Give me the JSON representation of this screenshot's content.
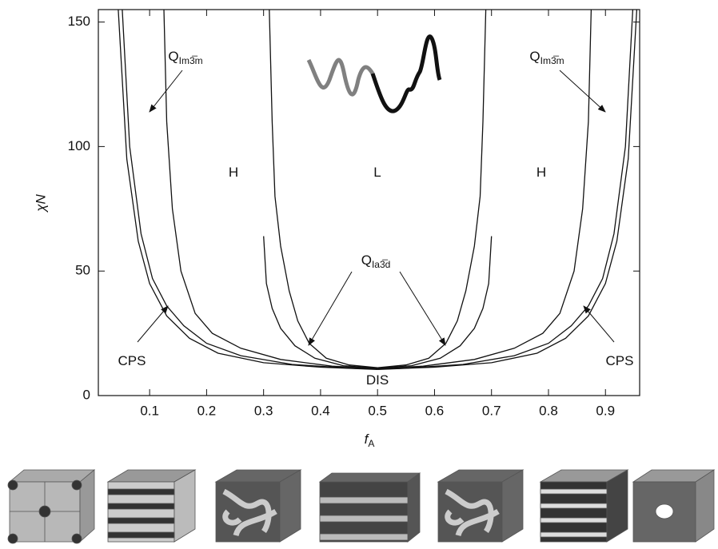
{
  "chart_data": {
    "type": "line",
    "x_label": {
      "main": "f",
      "sub": "A"
    },
    "y_label": "χN",
    "xlim": [
      0.01,
      0.96
    ],
    "ylim": [
      0,
      155
    ],
    "xticks": [
      0.1,
      0.2,
      0.3,
      0.4,
      0.5,
      0.6,
      0.7,
      0.8,
      0.9
    ],
    "yticks": [
      0,
      50,
      100,
      150
    ],
    "color": "#111111",
    "series": [
      {
        "x": [
          0.045,
          0.06,
          0.08,
          0.1,
          0.13,
          0.17,
          0.22,
          0.3,
          0.4,
          0.5
        ],
        "values": [
          155,
          95,
          62,
          45,
          32,
          23,
          17,
          13.2,
          11.4,
          10.5
        ]
      },
      {
        "x": [
          0.052,
          0.065,
          0.085,
          0.105,
          0.13,
          0.16,
          0.2,
          0.26,
          0.35,
          0.45,
          0.5
        ],
        "values": [
          155,
          100,
          65,
          47,
          36,
          28,
          21,
          16,
          12.5,
          11,
          10.6
        ]
      },
      {
        "x": [
          0.125,
          0.13,
          0.14,
          0.155,
          0.18,
          0.21,
          0.26,
          0.33,
          0.42,
          0.5
        ],
        "values": [
          155,
          110,
          75,
          50,
          33,
          25,
          19,
          14.5,
          11.8,
          10.8
        ]
      },
      {
        "x": [
          0.3,
          0.305,
          0.315,
          0.33,
          0.355,
          0.39,
          0.44,
          0.5
        ],
        "values": [
          64,
          45,
          35,
          27,
          20,
          15,
          12,
          11
        ]
      },
      {
        "x": [
          0.31,
          0.315,
          0.32,
          0.33,
          0.345,
          0.36,
          0.38,
          0.41,
          0.45,
          0.5
        ],
        "values": [
          155,
          110,
          80,
          60,
          42,
          30,
          21,
          15,
          12.3,
          11.2
        ]
      },
      {
        "x": [
          0.955,
          0.94,
          0.92,
          0.9,
          0.87,
          0.83,
          0.78,
          0.7,
          0.6,
          0.5
        ],
        "values": [
          155,
          95,
          62,
          45,
          32,
          23,
          17,
          13.2,
          11.4,
          10.5
        ]
      },
      {
        "x": [
          0.948,
          0.935,
          0.915,
          0.895,
          0.87,
          0.84,
          0.8,
          0.74,
          0.65,
          0.55,
          0.5
        ],
        "values": [
          155,
          100,
          65,
          47,
          36,
          28,
          21,
          16,
          12.5,
          11,
          10.6
        ]
      },
      {
        "x": [
          0.875,
          0.87,
          0.86,
          0.845,
          0.82,
          0.79,
          0.74,
          0.67,
          0.58,
          0.5
        ],
        "values": [
          155,
          110,
          75,
          50,
          33,
          25,
          19,
          14.5,
          11.8,
          10.8
        ]
      },
      {
        "x": [
          0.7,
          0.695,
          0.685,
          0.67,
          0.645,
          0.61,
          0.56,
          0.5
        ],
        "values": [
          64,
          45,
          35,
          27,
          20,
          15,
          12,
          11
        ]
      },
      {
        "x": [
          0.69,
          0.685,
          0.68,
          0.67,
          0.655,
          0.64,
          0.62,
          0.59,
          0.55,
          0.5
        ],
        "values": [
          155,
          110,
          80,
          60,
          42,
          30,
          21,
          15,
          12.3,
          11.2
        ]
      }
    ],
    "annotations": [
      {
        "text": "H"
      },
      {
        "text": "L"
      },
      {
        "text": "H"
      },
      {
        "text": "CPS"
      },
      {
        "text": "CPS"
      },
      {
        "text": "DIS"
      },
      {
        "text": "Q",
        "sub": "Im3̅m"
      },
      {
        "text": "Q",
        "sub": "Im3̅m"
      },
      {
        "text": "Q",
        "sub": "Ia3̅d"
      }
    ]
  }
}
